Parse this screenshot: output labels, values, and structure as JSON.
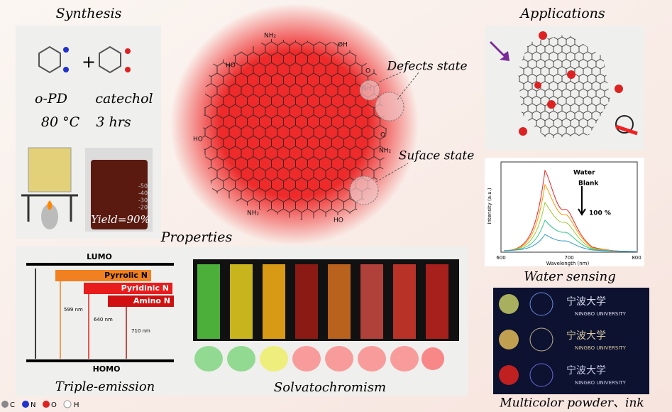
{
  "synthesis": {
    "title": "Synthesis",
    "plus": "+",
    "reactant1": "o-PD",
    "reactant2": "catechol",
    "temperature": "80 °C",
    "time": "3 hrs",
    "yield": "Yield=90%",
    "scale": [
      "-50",
      "-40",
      "-30",
      "-20"
    ]
  },
  "center": {
    "defects": "Defects state",
    "surface": "Suface state",
    "groups": [
      "NH₂",
      "OH",
      "HO",
      "HO",
      "NH₂",
      "NH₂",
      "HO",
      "NH",
      "O",
      "O"
    ]
  },
  "applications": {
    "title": "Applications",
    "water_sensing": "Water sensing",
    "multicolor": "Multicolor powder、ink",
    "university_cn": "宁波大学",
    "university_en": "NINGBO UNIVERSITY",
    "spectrum": {
      "y_label": "Intensity (a.u.)",
      "x_label": "Wavelength (nm)",
      "x_ticks": [
        "600",
        "700",
        "800"
      ],
      "water": "Water",
      "blank": "Blank",
      "percent": "100 %"
    }
  },
  "properties": {
    "title": "Properties",
    "lumo": "LUMO",
    "homo": "HOMO",
    "states": [
      "Pyrrolic N",
      "Pyridinic N",
      "Amino N"
    ],
    "emissions": [
      "599 nm",
      "640 nm",
      "710 nm"
    ],
    "triple": "Triple-emission",
    "solvato": "Solvatochromism"
  },
  "legend": [
    "C",
    "N",
    "O",
    "H"
  ]
}
